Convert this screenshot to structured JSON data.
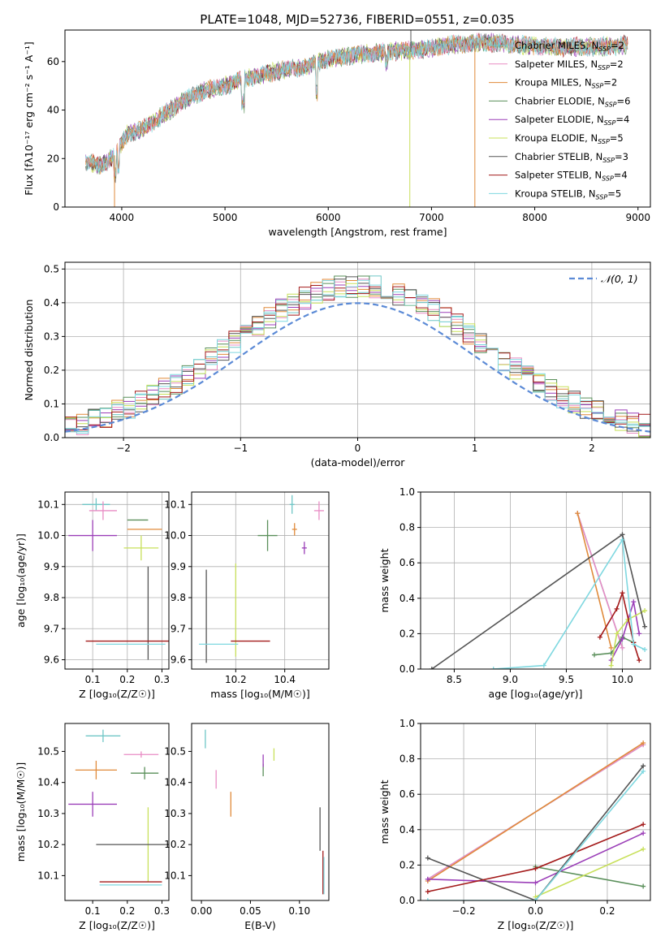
{
  "figure_title": "PLATE=1048, MJD=52736, FIBERID=0551, z=0.035",
  "colors": [
    "#6fc6c6",
    "#e88cc4",
    "#e08a3a",
    "#5a8f5a",
    "#9b3fb8",
    "#c8e05a",
    "#555555",
    "#a31a1a",
    "#7fd8e0"
  ],
  "chart_data": [
    {
      "id": "spectrum",
      "type": "line",
      "title": "PLATE=1048, MJD=52736, FIBERID=0551, z=0.035",
      "xlabel": "wavelength [Angstrom, rest frame]",
      "ylabel": "Flux [fλ10⁻¹⁷ erg cm⁻² s⁻¹ A⁻¹]",
      "xlim": [
        3450,
        9120
      ],
      "ylim": [
        0,
        73
      ],
      "xticks": [
        "4000",
        "5000",
        "6000",
        "7000",
        "8000",
        "9000"
      ],
      "yticks": [
        "0",
        "20",
        "40",
        "60"
      ],
      "xticks_v": [
        4000,
        5000,
        6000,
        7000,
        8000,
        9000
      ],
      "yticks_v": [
        0,
        20,
        40,
        60
      ],
      "legend_position": "top-right",
      "series": [
        {
          "name": "Chabrier MILES, N",
          "sub": "SSP",
          "suffix": "=2"
        },
        {
          "name": "Salpeter MILES, N",
          "sub": "SSP",
          "suffix": "=2"
        },
        {
          "name": "Kroupa MILES, N",
          "sub": "SSP",
          "suffix": "=2"
        },
        {
          "name": "Chabrier ELODIE, N",
          "sub": "SSP",
          "suffix": "=6"
        },
        {
          "name": "Salpeter ELODIE, N",
          "sub": "SSP",
          "suffix": "=4"
        },
        {
          "name": "Kroupa ELODIE, N",
          "sub": "SSP",
          "suffix": "=5"
        },
        {
          "name": "Chabrier STELIB, N",
          "sub": "SSP",
          "suffix": "=3"
        },
        {
          "name": "Salpeter STELIB, N",
          "sub": "SSP",
          "suffix": "=4"
        },
        {
          "name": "Kroupa STELIB, N",
          "sub": "SSP",
          "suffix": "=5"
        }
      ],
      "continuum": [
        [
          3650,
          19
        ],
        [
          3800,
          17
        ],
        [
          3950,
          22
        ],
        [
          4050,
          30
        ],
        [
          4200,
          32
        ],
        [
          4400,
          38
        ],
        [
          4600,
          44
        ],
        [
          4800,
          48
        ],
        [
          5000,
          50
        ],
        [
          5200,
          53
        ],
        [
          5500,
          56
        ],
        [
          5800,
          58
        ],
        [
          6000,
          61
        ],
        [
          6300,
          63
        ],
        [
          6600,
          64
        ],
        [
          6900,
          65
        ],
        [
          7200,
          67
        ],
        [
          7500,
          68
        ],
        [
          7800,
          67
        ],
        [
          8200,
          66
        ],
        [
          8600,
          66
        ],
        [
          8900,
          67
        ]
      ],
      "dropouts": [
        [
          3930,
          0
        ],
        [
          6790,
          0
        ],
        [
          7420,
          0
        ],
        [
          6800,
          73
        ]
      ]
    },
    {
      "id": "residuals",
      "type": "histogram",
      "xlabel": "(data-model)/error",
      "ylabel": "Normed distribution",
      "xlim": [
        -2.5,
        2.5
      ],
      "ylim": [
        0,
        0.52
      ],
      "xticks": [
        "−2",
        "−1",
        "0",
        "1",
        "2"
      ],
      "xticks_v": [
        -2,
        -1,
        0,
        1,
        2
      ],
      "yticks": [
        "0.0",
        "0.1",
        "0.2",
        "0.3",
        "0.4",
        "0.5"
      ],
      "yticks_v": [
        0,
        0.1,
        0.2,
        0.3,
        0.4,
        0.5
      ],
      "grid": true,
      "legend": "𝒩(0, 1)",
      "legend_position": "top-right",
      "gaussian": {
        "mu": 0,
        "sigma": 1,
        "color": "#5b8ad6"
      },
      "bin_edges_start": -2.5,
      "bin_width": 0.1
    },
    {
      "id": "age-vs-Z",
      "type": "scatter",
      "xlabel": "Z [log₁₀(Z/Z☉)]",
      "ylabel": "age  [log₁₀(age/yr)]",
      "xlim": [
        0.02,
        0.32
      ],
      "ylim": [
        9.57,
        10.14
      ],
      "xticks": [
        "0.1",
        "0.2",
        "0.3"
      ],
      "xticks_v": [
        0.1,
        0.2,
        0.3
      ],
      "yticks": [
        "9.6",
        "9.7",
        "9.8",
        "9.9",
        "10.0",
        "10.1"
      ],
      "yticks_v": [
        9.6,
        9.7,
        9.8,
        9.9,
        10.0,
        10.1
      ],
      "grid": true,
      "points": [
        {
          "x": 0.11,
          "y": 10.1,
          "ex": 0.04,
          "ey": 0.02
        },
        {
          "x": 0.13,
          "y": 10.08,
          "ex": 0.04,
          "ey": 0.03
        },
        {
          "x": 0.25,
          "y": 10.02,
          "ex": 0.05,
          "ey": 0.0
        },
        {
          "x": 0.23,
          "y": 10.05,
          "ex": 0.03,
          "ey": 0.0
        },
        {
          "x": 0.1,
          "y": 10.0,
          "ex": 0.07,
          "ey": 0.05
        },
        {
          "x": 0.24,
          "y": 9.96,
          "ex": 0.05,
          "ey": 0.04
        },
        {
          "x": 0.26,
          "y": 9.75,
          "ex": 0.0,
          "ey": 0.15
        },
        {
          "x": 0.2,
          "y": 9.66,
          "ex": 0.12,
          "ey": 0.0
        },
        {
          "x": 0.21,
          "y": 9.65,
          "ex": 0.1,
          "ey": 0.0
        }
      ]
    },
    {
      "id": "age-vs-mass",
      "type": "scatter",
      "xlabel": "mass [log₁₀(M/M☉)]",
      "ylabel": "",
      "xlim": [
        10.02,
        10.58
      ],
      "ylim": [
        9.57,
        10.14
      ],
      "xticks": [
        "10.2",
        "10.4"
      ],
      "xticks_v": [
        10.2,
        10.4
      ],
      "yticks": [
        "9.6",
        "9.7",
        "9.8",
        "9.9",
        "10.0",
        "10.1"
      ],
      "yticks_v": [
        9.6,
        9.7,
        9.8,
        9.9,
        10.0,
        10.1
      ],
      "grid": true,
      "points": [
        {
          "x": 10.43,
          "y": 10.1,
          "ex": 0.01,
          "ey": 0.03
        },
        {
          "x": 10.54,
          "y": 10.08,
          "ex": 0.02,
          "ey": 0.03
        },
        {
          "x": 10.44,
          "y": 10.02,
          "ex": 0.01,
          "ey": 0.02
        },
        {
          "x": 10.33,
          "y": 10.0,
          "ex": 0.04,
          "ey": 0.05
        },
        {
          "x": 10.48,
          "y": 9.96,
          "ex": 0.01,
          "ey": 0.02
        },
        {
          "x": 10.2,
          "y": 9.76,
          "ex": 0.0,
          "ey": 0.15
        },
        {
          "x": 10.08,
          "y": 9.74,
          "ex": 0.0,
          "ey": 0.15
        },
        {
          "x": 10.26,
          "y": 9.66,
          "ex": 0.08,
          "ey": 0.0
        },
        {
          "x": 10.13,
          "y": 9.65,
          "ex": 0.08,
          "ey": 0.0
        }
      ]
    },
    {
      "id": "weight-vs-age",
      "type": "line",
      "xlabel": "age  [log₁₀(age/yr)]",
      "ylabel": "mass weight",
      "xlim": [
        8.2,
        10.25
      ],
      "ylim": [
        0,
        1
      ],
      "xticks": [
        "8.5",
        "9.0",
        "9.5",
        "10.0"
      ],
      "xticks_v": [
        8.5,
        9.0,
        9.5,
        10.0
      ],
      "yticks": [
        "0.0",
        "0.2",
        "0.4",
        "0.6",
        "0.8",
        "1.0"
      ],
      "yticks_v": [
        0,
        0.2,
        0.4,
        0.6,
        0.8,
        1.0
      ],
      "grid": true,
      "series": [
        {
          "x": [
            9.6,
            10.0
          ],
          "y": [
            0.88,
            0.12
          ]
        },
        {
          "x": [
            9.6,
            10.0
          ],
          "y": [
            0.88,
            0.12
          ]
        },
        {
          "x": [
            9.6,
            9.9
          ],
          "y": [
            0.88,
            0.12
          ]
        },
        {
          "x": [
            9.75,
            9.9,
            10.0,
            10.1
          ],
          "y": [
            0.08,
            0.09,
            0.18,
            0.15
          ]
        },
        {
          "x": [
            9.9,
            10.0,
            10.1,
            10.15
          ],
          "y": [
            0.05,
            0.17,
            0.38,
            0.2
          ]
        },
        {
          "x": [
            9.9,
            9.95,
            10.05,
            10.2
          ],
          "y": [
            0.02,
            0.2,
            0.28,
            0.33
          ]
        },
        {
          "x": [
            8.3,
            10.0,
            10.2
          ],
          "y": [
            0.0,
            0.76,
            0.24
          ]
        },
        {
          "x": [
            9.8,
            9.95,
            10.0,
            10.1,
            10.15
          ],
          "y": [
            0.18,
            0.34,
            0.43,
            0.15,
            0.05
          ]
        },
        {
          "x": [
            8.85,
            9.3,
            10.0,
            10.1,
            10.2
          ],
          "y": [
            0.0,
            0.02,
            0.73,
            0.14,
            0.11
          ]
        }
      ]
    },
    {
      "id": "mass-vs-Z",
      "type": "scatter",
      "xlabel": "Z [log₁₀(Z/Z☉)]",
      "ylabel": "mass [log₁₀(M/M☉)]",
      "xlim": [
        0.02,
        0.32
      ],
      "ylim": [
        10.02,
        10.59
      ],
      "xticks": [
        "0.1",
        "0.2",
        "0.3"
      ],
      "xticks_v": [
        0.1,
        0.2,
        0.3
      ],
      "yticks": [
        "10.1",
        "10.2",
        "10.3",
        "10.4",
        "10.5"
      ],
      "yticks_v": [
        10.1,
        10.2,
        10.3,
        10.4,
        10.5
      ],
      "grid": false,
      "points": [
        {
          "x": 0.13,
          "y": 10.55,
          "ex": 0.05,
          "ey": 0.02
        },
        {
          "x": 0.24,
          "y": 10.49,
          "ex": 0.05,
          "ey": 0.01
        },
        {
          "x": 0.11,
          "y": 10.44,
          "ex": 0.06,
          "ey": 0.03
        },
        {
          "x": 0.25,
          "y": 10.43,
          "ex": 0.04,
          "ey": 0.02
        },
        {
          "x": 0.1,
          "y": 10.33,
          "ex": 0.07,
          "ey": 0.04
        },
        {
          "x": 0.26,
          "y": 10.2,
          "ex": 0.0,
          "ey": 0.12
        },
        {
          "x": 0.26,
          "y": 10.2,
          "ex": 0.15,
          "ey": 0.0
        },
        {
          "x": 0.21,
          "y": 10.08,
          "ex": 0.09,
          "ey": 0.0
        },
        {
          "x": 0.21,
          "y": 10.07,
          "ex": 0.09,
          "ey": 0.0
        }
      ]
    },
    {
      "id": "mass-vs-EBV",
      "type": "scatter",
      "xlabel": "E(B-V)",
      "ylabel": "",
      "xlim": [
        -0.01,
        0.13
      ],
      "ylim": [
        10.02,
        10.59
      ],
      "xticks": [
        "0.00",
        "0.05",
        "0.10"
      ],
      "xticks_v": [
        0.0,
        0.05,
        0.1
      ],
      "yticks": [
        "10.1",
        "10.2",
        "10.3",
        "10.4",
        "10.5"
      ],
      "yticks_v": [
        10.1,
        10.2,
        10.3,
        10.4,
        10.5
      ],
      "grid": false,
      "points": [
        {
          "x": 0.004,
          "y": 10.54,
          "ex": 0,
          "ey": 0.03
        },
        {
          "x": 0.015,
          "y": 10.41,
          "ex": 0,
          "ey": 0.03
        },
        {
          "x": 0.03,
          "y": 10.33,
          "ex": 0,
          "ey": 0.04
        },
        {
          "x": 0.063,
          "y": 10.44,
          "ex": 0,
          "ey": 0.02
        },
        {
          "x": 0.063,
          "y": 10.47,
          "ex": 0,
          "ey": 0.02
        },
        {
          "x": 0.074,
          "y": 10.49,
          "ex": 0,
          "ey": 0.02
        },
        {
          "x": 0.121,
          "y": 10.25,
          "ex": 0,
          "ey": 0.07
        },
        {
          "x": 0.124,
          "y": 10.11,
          "ex": 0,
          "ey": 0.07
        },
        {
          "x": 0.125,
          "y": 10.1,
          "ex": 0,
          "ey": 0.06
        }
      ]
    },
    {
      "id": "weight-vs-Z",
      "type": "line",
      "xlabel": "Z [log₁₀(Z/Z☉)]",
      "ylabel": "mass weight",
      "xlim": [
        -0.32,
        0.32
      ],
      "ylim": [
        0,
        1
      ],
      "xticks": [
        "−0.2",
        "0.0",
        "0.2"
      ],
      "xticks_v": [
        -0.2,
        0.0,
        0.2
      ],
      "yticks": [
        "0.0",
        "0.2",
        "0.4",
        "0.6",
        "0.8",
        "1.0"
      ],
      "yticks_v": [
        0,
        0.2,
        0.4,
        0.6,
        0.8,
        1.0
      ],
      "grid": true,
      "series": [
        {
          "x": [
            -0.3,
            0.3
          ],
          "y": [
            0.12,
            0.88
          ]
        },
        {
          "x": [
            -0.3,
            0.3
          ],
          "y": [
            0.12,
            0.88
          ]
        },
        {
          "x": [
            -0.3,
            0.3
          ],
          "y": [
            0.11,
            0.89
          ]
        },
        {
          "x": [
            0.0,
            0.3
          ],
          "y": [
            0.19,
            0.08
          ]
        },
        {
          "x": [
            -0.3,
            0.0,
            0.3
          ],
          "y": [
            0.12,
            0.1,
            0.38
          ]
        },
        {
          "x": [
            0.0,
            0.3
          ],
          "y": [
            0.02,
            0.29
          ]
        },
        {
          "x": [
            -0.3,
            0.0,
            0.3
          ],
          "y": [
            0.24,
            0.0,
            0.76
          ]
        },
        {
          "x": [
            -0.3,
            0.0,
            0.3
          ],
          "y": [
            0.05,
            0.18,
            0.43
          ]
        },
        {
          "x": [
            -0.3,
            0.0,
            0.3
          ],
          "y": [
            0.0,
            0.0,
            0.73
          ]
        }
      ]
    }
  ]
}
